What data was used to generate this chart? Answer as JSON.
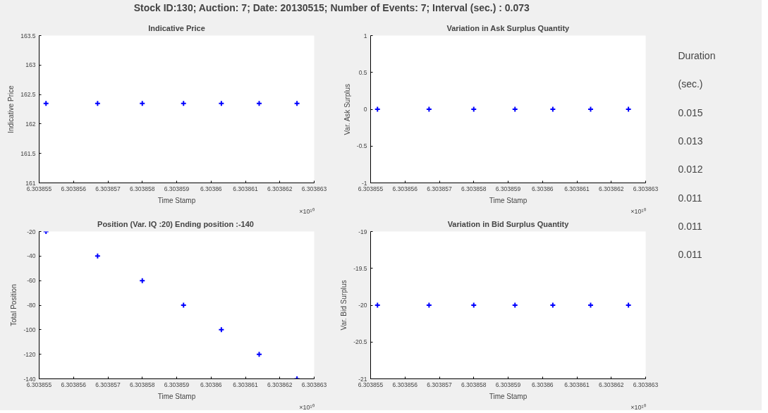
{
  "chart_data": [
    {
      "type": "other",
      "title": "Stock ID:130; Auction: 7; Date: 20130515; Number of Events: 7; Interval (sec.) : 0.073"
    },
    {
      "type": "scatter",
      "title": "Indicative Price",
      "xlabel": "Time Stamp",
      "ylabel": "Indicative Price",
      "annotations": [
        "×10¹⁰"
      ],
      "x": [
        6.3038552,
        6.3038567,
        6.303858,
        6.3038592,
        6.3038603,
        6.3038614,
        6.3038625
      ],
      "series": [
        {
          "color": "#0000ff",
          "values": [
            162.35,
            162.35,
            162.35,
            162.35,
            162.35,
            162.35,
            162.35
          ]
        }
      ],
      "xlim": [
        6.303855,
        6.303863
      ],
      "xticks": [
        6.303855,
        6.303856,
        6.303857,
        6.303858,
        6.303859,
        6.30386,
        6.303861,
        6.303862,
        6.303863
      ],
      "ylim": [
        161,
        163.5
      ],
      "yticks": [
        161,
        161.5,
        162,
        162.5,
        163,
        163.5
      ],
      "grid": false,
      "marker": "cross"
    },
    {
      "type": "scatter",
      "title": "Variation in Ask Surplus Quantity",
      "xlabel": "Time Stamp",
      "ylabel": "Var. Ask Surplus",
      "annotations": [
        "×10¹⁰"
      ],
      "x": [
        6.3038552,
        6.3038567,
        6.303858,
        6.3038592,
        6.3038603,
        6.3038614,
        6.3038625
      ],
      "series": [
        {
          "color": "#0000ff",
          "values": [
            0,
            0,
            0,
            0,
            0,
            0,
            0
          ]
        }
      ],
      "xlim": [
        6.303855,
        6.303863
      ],
      "xticks": [
        6.303855,
        6.303856,
        6.303857,
        6.303858,
        6.303859,
        6.30386,
        6.303861,
        6.303862,
        6.303863
      ],
      "ylim": [
        -1,
        1
      ],
      "yticks": [
        -1,
        -0.5,
        0,
        0.5,
        1
      ],
      "grid": false,
      "marker": "cross"
    },
    {
      "type": "scatter",
      "title": "Position  (Var. IQ :20) Ending position :-140",
      "xlabel": "Time Stamp",
      "ylabel": "Total Position",
      "annotations": [
        "×10¹⁰"
      ],
      "x": [
        6.3038552,
        6.3038567,
        6.303858,
        6.3038592,
        6.3038603,
        6.3038614,
        6.3038625
      ],
      "series": [
        {
          "color": "#0000ff",
          "values": [
            -20,
            -40,
            -60,
            -80,
            -100,
            -120,
            -140
          ]
        }
      ],
      "xlim": [
        6.303855,
        6.303863
      ],
      "xticks": [
        6.303855,
        6.303856,
        6.303857,
        6.303858,
        6.303859,
        6.30386,
        6.303861,
        6.303862,
        6.303863
      ],
      "ylim": [
        -140,
        -20
      ],
      "yticks": [
        -140,
        -120,
        -100,
        -80,
        -60,
        -40,
        -20
      ],
      "grid": false,
      "marker": "cross"
    },
    {
      "type": "scatter",
      "title": "Variation in Bid Surplus Quantity",
      "xlabel": "Time Stamp",
      "ylabel": "Var. Bid Surplus",
      "annotations": [
        "×10¹⁰"
      ],
      "x": [
        6.3038552,
        6.3038567,
        6.303858,
        6.3038592,
        6.3038603,
        6.3038614,
        6.3038625
      ],
      "series": [
        {
          "color": "#0000ff",
          "values": [
            -20,
            -20,
            -20,
            -20,
            -20,
            -20,
            -20
          ]
        }
      ],
      "xlim": [
        6.303855,
        6.303863
      ],
      "xticks": [
        6.303855,
        6.303856,
        6.303857,
        6.303858,
        6.303859,
        6.30386,
        6.303861,
        6.303862,
        6.303863
      ],
      "ylim": [
        -21,
        -19
      ],
      "yticks": [
        -21,
        -20.5,
        -20,
        -19.5,
        -19
      ],
      "grid": false,
      "marker": "cross"
    },
    {
      "type": "other",
      "title": "Duration",
      "subtitle": "(sec.)",
      "annotations": [
        "0.015",
        "0.013",
        "0.012",
        "0.011",
        "0.011",
        "0.011"
      ]
    }
  ]
}
